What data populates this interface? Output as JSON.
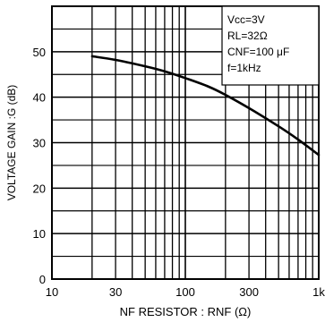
{
  "chart_data": {
    "type": "line",
    "xlabel": "NF  RESISTOR : RNF  (Ω)",
    "ylabel": "VOLTAGE  GAIN :G  (dB)",
    "x_scale": "log",
    "xlim": [
      10,
      1000
    ],
    "ylim": [
      0,
      60
    ],
    "x_ticks": [
      {
        "value": 10,
        "label": "10"
      },
      {
        "value": 30,
        "label": "30"
      },
      {
        "value": 100,
        "label": "100"
      },
      {
        "value": 300,
        "label": "300"
      },
      {
        "value": 1000,
        "label": "1k"
      }
    ],
    "y_ticks": [
      {
        "value": 0,
        "label": "0"
      },
      {
        "value": 10,
        "label": "10"
      },
      {
        "value": 20,
        "label": "20"
      },
      {
        "value": 30,
        "label": "30"
      },
      {
        "value": 40,
        "label": "40"
      },
      {
        "value": 50,
        "label": "50"
      }
    ],
    "grid": true,
    "legend_position": "top-right",
    "conditions": [
      "Vcc=3V",
      "RL=32Ω",
      "CNF=100 μF",
      "f=1kHz"
    ],
    "series": [
      {
        "x": [
          20,
          30,
          50,
          70,
          100,
          150,
          200,
          300,
          500,
          700,
          1000
        ],
        "y": [
          49,
          48.2,
          46.8,
          45.7,
          44.2,
          42.3,
          40.5,
          37.6,
          33.6,
          30.7,
          27.3
        ]
      }
    ]
  }
}
